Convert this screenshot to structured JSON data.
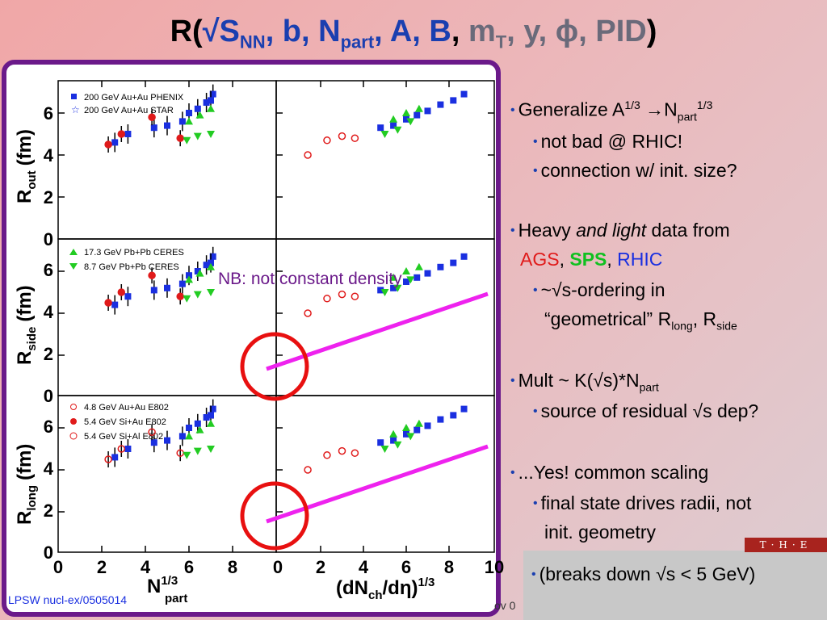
{
  "title": {
    "r_open": "R(",
    "sqrt": "√",
    "s": "S",
    "nn": "NN",
    "b": ", b, ",
    "n": "N",
    "part": "part",
    "ab": ", A, B",
    "comma": ", ",
    "m": "m",
    "t": "T",
    "rest": ", y, ϕ, PID",
    "close": ")"
  },
  "plot": {
    "panels": [
      {
        "ylabel_main": "R",
        "ylabel_sub": "out",
        "ylabel_unit": "(fm)"
      },
      {
        "ylabel_main": "R",
        "ylabel_sub": "side",
        "ylabel_unit": "(fm)"
      },
      {
        "ylabel_main": "R",
        "ylabel_sub": "long",
        "ylabel_unit": "(fm)"
      }
    ],
    "y_ticks": [
      "0",
      "2",
      "4",
      "6"
    ],
    "x_ticks_left": [
      "0",
      "2",
      "4",
      "6",
      "8"
    ],
    "x_ticks_right": [
      "0",
      "2",
      "4",
      "6",
      "8",
      "10"
    ],
    "xlabel_left_main": "N",
    "xlabel_left_sup": "1/3",
    "xlabel_left_sub": "part",
    "xlabel_right": "(dN",
    "xlabel_right_sub": "ch",
    "xlabel_right_mid": "/dη)",
    "xlabel_right_sup": "1/3",
    "legend_top": [
      "200 GeV Au+Au PHENIX",
      "200 GeV Au+Au STAR"
    ],
    "legend_mid": [
      "17.3 GeV Pb+Pb CERES",
      "8.7 GeV Pb+Pb CERES"
    ],
    "legend_bottom": [
      "4.8 GeV Au+Au E802",
      "5.4 GeV Si+Au  E802",
      "5.4 GeV Si+Al   E802"
    ],
    "annotation": "NB: not constant density",
    "colors": {
      "phenix": "#1a2fe0",
      "ceres": "#22cc22",
      "e802": "#e01a1a",
      "fit_line": "#ee22ee",
      "circle": "#e81010"
    }
  },
  "bullets": {
    "b1": {
      "text": "Generalize A",
      "sup1": "1/3",
      "arrow": " →N",
      "sub": "part",
      "sup2": "1/3"
    },
    "b1_1": "not bad @ RHIC!",
    "b1_2": "connection w/ init. size?",
    "b2": {
      "pre": "Heavy ",
      "em": "and light",
      "post": " data from"
    },
    "b2_line2": {
      "ags": "AGS",
      "c1": ", ",
      "sps": "SPS",
      "c2": ", ",
      "rhic": "RHIC"
    },
    "b2_1": "~√s-ordering in",
    "b2_1b": {
      "pre": "“geometrical” R",
      "sub1": "long",
      "mid": ", R",
      "sub2": "side"
    },
    "b3": {
      "pre": "Mult ~ K(√s)*N",
      "sub": "part"
    },
    "b3_1": "source of residual √s dep?",
    "b4": "...Yes! common scaling",
    "b4_1": "final state drives radii, not",
    "b4_1b": "init. geometry",
    "b5": "(breaks down √s < 5 GeV)"
  },
  "footer": {
    "source": "LPSW nucl-ex/0505014",
    "date": "ov 0",
    "logo": "T·H·E"
  }
}
